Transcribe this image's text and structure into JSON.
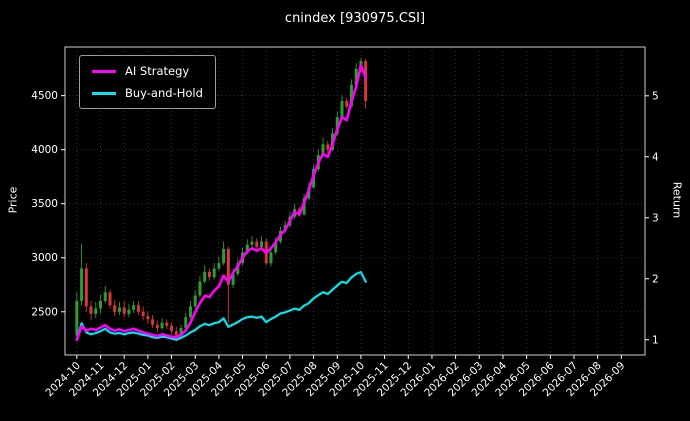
{
  "title": "cnindex [930975.CSI]",
  "colors": {
    "background": "#000000",
    "text": "#ffffff",
    "grid": "#3f3f3f",
    "spine": "#d0d0d0",
    "ai_strategy": "#ff00ff",
    "buy_and_hold": "#00e5ee",
    "candle_up": "#2e9e2e",
    "candle_down": "#d43a3a"
  },
  "legend": {
    "items": [
      {
        "label": "AI Strategy",
        "color": "#ff00ff"
      },
      {
        "label": "Buy-and-Hold",
        "color": "#00e5ee"
      }
    ]
  },
  "chart_data": {
    "type": "line",
    "overlay": "candlestick-ohlc",
    "title": "cnindex [930975.CSI]",
    "grid": true,
    "legend_position": "upper-left",
    "x_axis": {
      "unit": "month",
      "range": [
        -0.5,
        24.0
      ],
      "tick_positions": [
        0,
        1,
        2,
        3,
        4,
        5,
        6,
        7,
        8,
        9,
        10,
        11,
        12,
        13,
        14,
        15,
        16,
        17,
        18,
        19,
        20,
        21,
        22,
        23
      ],
      "tick_labels": [
        "2024-10",
        "2024-11",
        "2024-12",
        "2025-01",
        "2025-02",
        "2025-03",
        "2025-04",
        "2025-05",
        "2025-06",
        "2025-07",
        "2025-08",
        "2025-09",
        "2025-10",
        "2025-11",
        "2025-12",
        "2026-01",
        "2026-02",
        "2026-03",
        "2026-04",
        "2026-05",
        "2026-06",
        "2026-07",
        "2026-08",
        "2026-09"
      ]
    },
    "left_axis": {
      "label": "Price",
      "ticks": [
        2500,
        3000,
        3500,
        4000,
        4500
      ],
      "range": [
        2100,
        4950
      ]
    },
    "right_axis": {
      "label": "Return",
      "ticks": [
        1,
        2,
        3,
        4,
        5
      ],
      "range": [
        0.75,
        5.8
      ]
    },
    "x": [
      0,
      0.2,
      0.4,
      0.6,
      0.8,
      1.0,
      1.2,
      1.4,
      1.6,
      1.8,
      2.0,
      2.2,
      2.4,
      2.6,
      2.8,
      3.0,
      3.2,
      3.4,
      3.6,
      3.8,
      4.0,
      4.2,
      4.4,
      4.6,
      4.8,
      5.0,
      5.2,
      5.4,
      5.6,
      5.8,
      6.0,
      6.2,
      6.4,
      6.6,
      6.8,
      7.0,
      7.2,
      7.4,
      7.6,
      7.8,
      8.0,
      8.2,
      8.4,
      8.6,
      8.8,
      9.0,
      9.2,
      9.4,
      9.6,
      9.8,
      10.0,
      10.2,
      10.4,
      10.6,
      10.8,
      11.0,
      11.2,
      11.4,
      11.6,
      11.8,
      12.0,
      12.2
    ],
    "series": [
      {
        "name": "AI Strategy",
        "axis": "right",
        "color": "#ff00ff",
        "line_width": 2.6,
        "values": [
          1.0,
          1.22,
          1.15,
          1.18,
          1.16,
          1.2,
          1.24,
          1.18,
          1.15,
          1.17,
          1.14,
          1.16,
          1.18,
          1.15,
          1.12,
          1.1,
          1.08,
          1.06,
          1.09,
          1.07,
          1.05,
          1.04,
          1.08,
          1.15,
          1.28,
          1.45,
          1.6,
          1.72,
          1.7,
          1.8,
          1.88,
          2.05,
          1.95,
          2.1,
          2.2,
          2.35,
          2.45,
          2.5,
          2.46,
          2.5,
          2.42,
          2.5,
          2.6,
          2.72,
          2.8,
          2.95,
          3.1,
          3.05,
          3.25,
          3.45,
          3.7,
          3.9,
          4.05,
          4.0,
          4.2,
          4.45,
          4.65,
          4.6,
          4.9,
          5.15,
          5.5,
          5.3
        ]
      },
      {
        "name": "Buy-and-Hold",
        "axis": "right",
        "color": "#00e5ee",
        "line_width": 2.2,
        "values": [
          1.0,
          1.27,
          1.12,
          1.09,
          1.11,
          1.14,
          1.18,
          1.12,
          1.1,
          1.11,
          1.09,
          1.11,
          1.12,
          1.1,
          1.08,
          1.07,
          1.04,
          1.03,
          1.05,
          1.04,
          1.02,
          1.0,
          1.03,
          1.07,
          1.12,
          1.16,
          1.22,
          1.26,
          1.24,
          1.27,
          1.29,
          1.35,
          1.21,
          1.25,
          1.29,
          1.34,
          1.37,
          1.38,
          1.36,
          1.38,
          1.29,
          1.34,
          1.38,
          1.43,
          1.45,
          1.48,
          1.51,
          1.49,
          1.56,
          1.6,
          1.68,
          1.73,
          1.78,
          1.75,
          1.82,
          1.89,
          1.95,
          1.93,
          2.02,
          2.08,
          2.11,
          1.95
        ]
      }
    ],
    "candles": {
      "axis": "left",
      "up_color": "#2e9e2e",
      "down_color": "#d43a3a",
      "open": [
        2280,
        2600,
        2900,
        2550,
        2480,
        2530,
        2600,
        2680,
        2560,
        2500,
        2540,
        2480,
        2520,
        2560,
        2500,
        2460,
        2430,
        2380,
        2350,
        2400,
        2370,
        2320,
        2280,
        2350,
        2450,
        2550,
        2650,
        2780,
        2870,
        2820,
        2900,
        2950,
        3080,
        2750,
        2850,
        2950,
        3050,
        3120,
        3150,
        3100,
        3150,
        2950,
        3050,
        3150,
        3250,
        3300,
        3380,
        3450,
        3400,
        3550,
        3650,
        3820,
        3950,
        4050,
        4000,
        4150,
        4300,
        4450,
        4400,
        4600,
        4750,
        4820
      ],
      "high": [
        2680,
        3130,
        2950,
        2600,
        2590,
        2660,
        2740,
        2700,
        2610,
        2590,
        2600,
        2570,
        2600,
        2600,
        2550,
        2500,
        2470,
        2420,
        2440,
        2430,
        2400,
        2360,
        2380,
        2490,
        2600,
        2700,
        2830,
        2930,
        2900,
        2950,
        3010,
        3150,
        3100,
        2900,
        2990,
        3090,
        3170,
        3200,
        3180,
        3200,
        3180,
        3080,
        3190,
        3290,
        3340,
        3420,
        3500,
        3470,
        3590,
        3700,
        3860,
        4000,
        4110,
        4080,
        4200,
        4350,
        4500,
        4480,
        4650,
        4800,
        4850,
        4840
      ],
      "low": [
        2240,
        2560,
        2500,
        2420,
        2440,
        2480,
        2580,
        2530,
        2460,
        2470,
        2450,
        2450,
        2490,
        2470,
        2420,
        2390,
        2350,
        2310,
        2330,
        2340,
        2290,
        2250,
        2260,
        2330,
        2430,
        2530,
        2630,
        2760,
        2790,
        2800,
        2880,
        2930,
        2400,
        2720,
        2830,
        2930,
        3030,
        3090,
        3070,
        3080,
        2930,
        2920,
        3030,
        3130,
        3230,
        3280,
        3360,
        3380,
        3390,
        3530,
        3640,
        3800,
        3930,
        3970,
        3990,
        4130,
        4280,
        4380,
        4390,
        4580,
        4720,
        4380
      ],
      "close": [
        2600,
        2900,
        2550,
        2480,
        2530,
        2600,
        2680,
        2560,
        2500,
        2540,
        2480,
        2520,
        2560,
        2500,
        2460,
        2430,
        2380,
        2350,
        2400,
        2370,
        2320,
        2280,
        2350,
        2450,
        2550,
        2650,
        2780,
        2870,
        2820,
        2900,
        2950,
        3080,
        2750,
        2850,
        2950,
        3050,
        3120,
        3150,
        3100,
        3150,
        2950,
        3050,
        3150,
        3250,
        3300,
        3380,
        3450,
        3400,
        3550,
        3650,
        3820,
        3950,
        4050,
        4000,
        4150,
        4300,
        4450,
        4400,
        4600,
        4750,
        4820,
        4450
      ]
    }
  }
}
